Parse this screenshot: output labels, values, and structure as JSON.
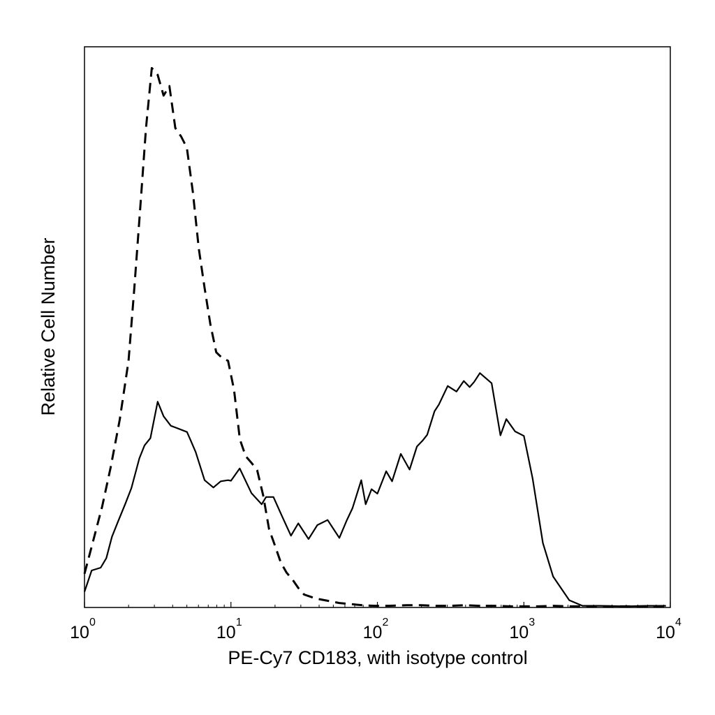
{
  "chart_data": {
    "type": "line",
    "title": "",
    "xlabel": "PE-Cy7 CD183, with isotype control",
    "ylabel": "Relative Cell Number",
    "xscale": "log",
    "xlim": [
      1,
      10000
    ],
    "ylim": [
      0,
      1
    ],
    "grid": false,
    "legend": "none",
    "x_ticks": [
      {
        "base": "10",
        "exp": "0",
        "value": 1
      },
      {
        "base": "10",
        "exp": "1",
        "value": 10
      },
      {
        "base": "10",
        "exp": "2",
        "value": 100
      },
      {
        "base": "10",
        "exp": "3",
        "value": 1000
      },
      {
        "base": "10",
        "exp": "4",
        "value": 10000
      }
    ],
    "series": [
      {
        "style": "solid",
        "color": "#000000",
        "x": [
          1,
          1.12,
          1.29,
          1.41,
          1.54,
          1.7,
          1.9,
          2.09,
          2.37,
          2.57,
          2.82,
          3.16,
          3.47,
          3.89,
          4.27,
          5.01,
          5.37,
          5.75,
          6.61,
          7.59,
          8.51,
          9.55,
          10.0,
          11.48,
          13.8,
          16.22,
          17.38,
          19.5,
          22.39,
          25.7,
          28.84,
          33.88,
          38.9,
          45.7,
          54.95,
          61.66,
          67.61,
          77.62,
          83.18,
          91.2,
          100.0,
          114.8,
          125.9,
          144.5,
          165.96,
          186.2,
          204.2,
          218.8,
          245.5,
          263.0,
          301.9,
          346.7,
          389.0,
          426.6,
          457.1,
          501.2,
          602.6,
          691.8,
          758.6,
          870.96,
          1000,
          1147.8,
          1349.0,
          1584.9,
          2041.7,
          2511.9,
          3311.3,
          5011.9,
          7079.5,
          9332.5
        ],
        "y": [
          0.028,
          0.066,
          0.071,
          0.088,
          0.126,
          0.154,
          0.185,
          0.213,
          0.266,
          0.289,
          0.302,
          0.367,
          0.341,
          0.324,
          0.32,
          0.313,
          0.295,
          0.277,
          0.227,
          0.214,
          0.225,
          0.227,
          0.226,
          0.248,
          0.204,
          0.184,
          0.197,
          0.197,
          0.162,
          0.128,
          0.15,
          0.122,
          0.147,
          0.156,
          0.124,
          0.155,
          0.177,
          0.227,
          0.184,
          0.211,
          0.203,
          0.243,
          0.225,
          0.274,
          0.246,
          0.287,
          0.298,
          0.308,
          0.35,
          0.362,
          0.395,
          0.385,
          0.404,
          0.393,
          0.402,
          0.418,
          0.4,
          0.307,
          0.336,
          0.314,
          0.306,
          0.23,
          0.115,
          0.055,
          0.013,
          0.003,
          0.003,
          0.002,
          0.003,
          0.003
        ]
      },
      {
        "style": "dashed",
        "color": "#000000",
        "x": [
          1,
          1.15,
          1.32,
          1.51,
          1.74,
          2.0,
          2.19,
          2.4,
          2.63,
          2.88,
          3.16,
          3.47,
          3.8,
          4.17,
          4.57,
          5.0,
          5.5,
          6.03,
          6.61,
          7.24,
          7.94,
          8.71,
          9.55,
          10.5,
          11.5,
          12.6,
          13.8,
          15.1,
          16.6,
          18.2,
          20.0,
          21.9,
          24.0,
          26.3,
          28.8,
          31.6,
          38.0,
          45.7,
          55.0,
          66.1,
          79.4,
          95.5,
          120.0,
          158.5,
          199.5,
          251.2,
          316.2,
          398.1,
          501.2,
          631.0,
          794.3,
          1000,
          1258.9,
          1584.9,
          1995.3,
          2511.9,
          3162.3,
          3981.1,
          5011.9,
          6309.6,
          7943.3,
          9332.5
        ],
        "y": [
          0.06,
          0.12,
          0.18,
          0.25,
          0.335,
          0.44,
          0.57,
          0.71,
          0.855,
          0.962,
          0.95,
          0.913,
          0.93,
          0.855,
          0.84,
          0.82,
          0.74,
          0.64,
          0.57,
          0.505,
          0.455,
          0.445,
          0.44,
          0.388,
          0.3,
          0.27,
          0.258,
          0.245,
          0.2,
          0.14,
          0.11,
          0.08,
          0.062,
          0.05,
          0.035,
          0.023,
          0.016,
          0.012,
          0.008,
          0.006,
          0.004,
          0.003,
          0.003,
          0.004,
          0.004,
          0.003,
          0.003,
          0.004,
          0.003,
          0.003,
          0.002,
          0.002,
          0.002,
          0.003,
          0.002,
          0.002,
          0.002,
          0.002,
          0.002,
          0.002,
          0.002,
          0.002
        ]
      }
    ]
  }
}
